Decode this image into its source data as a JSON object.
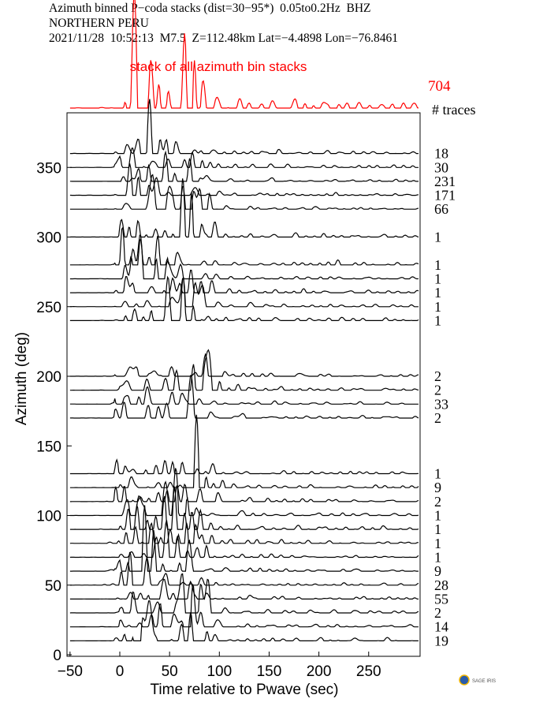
{
  "header": {
    "line1": "Azimuth binned P−coda stacks (dist=30−95*)  0.05to0.2Hz  BHZ",
    "line2": "NORTHERN PERU",
    "line3": "2021/11/28  10:52:13  M7.5  Z=112.48km Lat=−4.4898 Lon=−76.8461"
  },
  "chart_data": {
    "type": "line",
    "title": "Azimuth binned P-coda stacks",
    "xlabel": "Time relative to Pwave (sec)",
    "ylabel": "Azimuth (deg)",
    "xlim": [
      -53,
      300
    ],
    "ylim": [
      0,
      390
    ],
    "xticks": [
      -50,
      0,
      50,
      100,
      150,
      200,
      250
    ],
    "xtick_labels": [
      "−50",
      "0",
      "50",
      "100",
      "150",
      "200",
      "250"
    ],
    "yticks": [
      0,
      50,
      100,
      150,
      200,
      250,
      300,
      350
    ],
    "ytick_labels": [
      "0",
      "50",
      "100",
      "150",
      "200",
      "250",
      "300",
      "350"
    ],
    "stack_label": "stack of all azimuth bin stacks",
    "stack_traces": "704",
    "traces_header": "# traces",
    "stack_color": "#ff0000",
    "trace_color": "#000000",
    "series": [
      {
        "azimuth": 360,
        "traces": "18"
      },
      {
        "azimuth": 350,
        "traces": "30"
      },
      {
        "azimuth": 340,
        "traces": "231"
      },
      {
        "azimuth": 330,
        "traces": "171"
      },
      {
        "azimuth": 320,
        "traces": "66"
      },
      {
        "azimuth": 300,
        "traces": "1"
      },
      {
        "azimuth": 280,
        "traces": "1"
      },
      {
        "azimuth": 270,
        "traces": "1"
      },
      {
        "azimuth": 260,
        "traces": "1"
      },
      {
        "azimuth": 250,
        "traces": "1"
      },
      {
        "azimuth": 240,
        "traces": "1"
      },
      {
        "azimuth": 200,
        "traces": "2"
      },
      {
        "azimuth": 190,
        "traces": "2"
      },
      {
        "azimuth": 180,
        "traces": "33"
      },
      {
        "azimuth": 170,
        "traces": "2"
      },
      {
        "azimuth": 130,
        "traces": "1"
      },
      {
        "azimuth": 120,
        "traces": "9"
      },
      {
        "azimuth": 110,
        "traces": "2"
      },
      {
        "azimuth": 100,
        "traces": "1"
      },
      {
        "azimuth": 90,
        "traces": "1"
      },
      {
        "azimuth": 80,
        "traces": "1"
      },
      {
        "azimuth": 70,
        "traces": "1"
      },
      {
        "azimuth": 60,
        "traces": "9"
      },
      {
        "azimuth": 50,
        "traces": "28"
      },
      {
        "azimuth": 40,
        "traces": "55"
      },
      {
        "azimuth": 30,
        "traces": "2"
      },
      {
        "azimuth": 20,
        "traces": "14"
      },
      {
        "azimuth": 10,
        "traces": "19"
      }
    ]
  },
  "logo": "SAGE IRIS"
}
